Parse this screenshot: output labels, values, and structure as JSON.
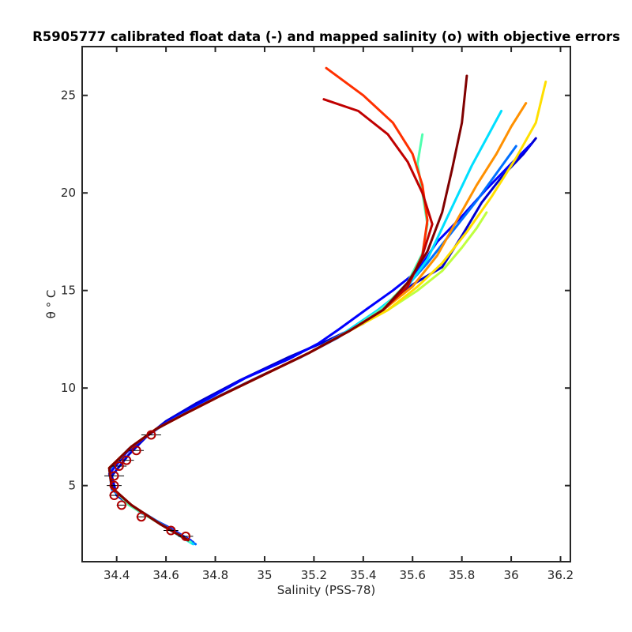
{
  "chart_data": {
    "type": "line",
    "title": "R5905777 calibrated float data (-) and mapped salinity (o) with objective errors",
    "xlabel": "Salinity (PSS-78)",
    "ylabel": "θ ° C",
    "xlim": [
      34.26,
      36.24
    ],
    "ylim": [
      1.1,
      27.5
    ],
    "xticks": [
      "34.4",
      "34.6",
      "34.8",
      "35",
      "35.2",
      "35.4",
      "35.6",
      "35.8",
      "36",
      "36.2"
    ],
    "yticks": [
      "5",
      "10",
      "15",
      "20",
      "25"
    ],
    "grid": false,
    "colormap": [
      "#00008f",
      "#0000ff",
      "#006fff",
      "#00dfff",
      "#4fffaf",
      "#bfff3f",
      "#ffdf00",
      "#ff9000",
      "#ff3000",
      "#c00000",
      "#800000"
    ],
    "series": [
      {
        "color": "#0000cd",
        "x": [
          34.71,
          34.62,
          34.5,
          34.4,
          34.38,
          34.45,
          34.52,
          34.6,
          34.72,
          34.9,
          35.1,
          35.25,
          35.4,
          35.5,
          35.6,
          35.72,
          35.8,
          35.88,
          35.96,
          36.05,
          36.1
        ],
        "y": [
          2.1,
          2.8,
          3.6,
          4.5,
          5.5,
          6.6,
          7.5,
          8.3,
          9.2,
          10.4,
          11.6,
          12.4,
          13.3,
          14.2,
          15.3,
          16.2,
          17.8,
          19.5,
          20.8,
          22.0,
          22.8
        ]
      },
      {
        "color": "#0000ff",
        "x": [
          34.7,
          34.6,
          34.48,
          34.39,
          34.37,
          34.44,
          34.53,
          34.62,
          34.75,
          34.92,
          35.1,
          35.22,
          35.3,
          35.42,
          35.52,
          35.62,
          35.7,
          35.8,
          35.9,
          36.0,
          36.08
        ],
        "y": [
          2.2,
          2.9,
          3.8,
          4.7,
          5.6,
          6.7,
          7.6,
          8.4,
          9.3,
          10.5,
          11.5,
          12.3,
          13.0,
          14.1,
          15.0,
          16.0,
          17.5,
          18.8,
          20.2,
          21.5,
          22.5
        ]
      },
      {
        "color": "#006fff",
        "x": [
          34.72,
          34.6,
          34.47,
          34.38,
          34.37,
          34.45,
          34.55,
          34.66,
          34.8,
          34.98,
          35.15,
          35.3,
          35.44,
          35.56,
          35.66,
          35.76,
          35.86,
          35.94,
          36.02
        ],
        "y": [
          2.0,
          2.9,
          3.9,
          4.8,
          5.8,
          6.9,
          7.8,
          8.6,
          9.5,
          10.6,
          11.6,
          12.6,
          13.8,
          15.0,
          16.4,
          18.0,
          19.6,
          21.0,
          22.4
        ]
      },
      {
        "color": "#00dfff",
        "x": [
          34.71,
          34.58,
          34.46,
          34.38,
          34.37,
          34.46,
          34.56,
          34.68,
          34.82,
          35.0,
          35.18,
          35.32,
          35.46,
          35.58,
          35.66,
          35.72,
          35.78,
          35.84,
          35.9,
          35.96
        ],
        "y": [
          2.0,
          3.0,
          4.0,
          4.9,
          5.9,
          7.0,
          7.9,
          8.7,
          9.6,
          10.7,
          11.8,
          12.8,
          14.0,
          15.2,
          16.6,
          18.2,
          19.8,
          21.4,
          22.8,
          24.2
        ]
      },
      {
        "color": "#4fffaf",
        "x": [
          34.7,
          34.58,
          34.45,
          34.38,
          34.37,
          34.46,
          34.56,
          34.68,
          34.82,
          35.0,
          35.18,
          35.34,
          35.48,
          35.58,
          35.64,
          35.66,
          35.64,
          35.62,
          35.64
        ],
        "y": [
          2.1,
          3.0,
          4.0,
          4.9,
          5.9,
          7.0,
          7.9,
          8.7,
          9.6,
          10.7,
          11.8,
          12.9,
          14.1,
          15.4,
          16.9,
          18.4,
          20.0,
          21.5,
          23.0
        ]
      },
      {
        "color": "#bfff3f",
        "x": [
          34.69,
          34.58,
          34.46,
          34.38,
          34.37,
          34.46,
          34.56,
          34.68,
          34.82,
          35.0,
          35.18,
          35.34,
          35.5,
          35.62,
          35.72,
          35.8,
          35.86,
          35.9
        ],
        "y": [
          2.2,
          3.0,
          4.0,
          4.9,
          5.9,
          7.0,
          7.9,
          8.7,
          9.6,
          10.7,
          11.8,
          12.9,
          14.0,
          15.0,
          16.0,
          17.2,
          18.2,
          19.0
        ]
      },
      {
        "color": "#ffdf00",
        "x": [
          34.69,
          34.58,
          34.46,
          34.38,
          34.37,
          34.46,
          34.56,
          34.68,
          34.82,
          35.0,
          35.18,
          35.34,
          35.5,
          35.62,
          35.72,
          35.82,
          35.92,
          36.02,
          36.1,
          36.14
        ],
        "y": [
          2.2,
          3.0,
          4.0,
          4.9,
          5.9,
          7.0,
          7.9,
          8.7,
          9.6,
          10.7,
          11.8,
          12.9,
          14.0,
          15.2,
          16.4,
          18.0,
          19.8,
          21.8,
          23.6,
          25.7
        ]
      },
      {
        "color": "#ff9000",
        "x": [
          34.69,
          34.58,
          34.46,
          34.38,
          34.37,
          34.46,
          34.56,
          34.68,
          34.82,
          35.0,
          35.18,
          35.34,
          35.48,
          35.6,
          35.7,
          35.78,
          35.86,
          35.94,
          36.0,
          36.06
        ],
        "y": [
          2.2,
          3.0,
          4.0,
          4.9,
          5.9,
          7.0,
          7.9,
          8.7,
          9.6,
          10.7,
          11.8,
          12.9,
          14.0,
          15.2,
          16.8,
          18.6,
          20.4,
          22.0,
          23.4,
          24.6
        ]
      },
      {
        "color": "#ff3000",
        "x": [
          34.69,
          34.58,
          34.46,
          34.38,
          34.37,
          34.46,
          34.56,
          34.68,
          34.82,
          35.0,
          35.18,
          35.34,
          35.48,
          35.58,
          35.64,
          35.66,
          35.64,
          35.6,
          35.52,
          35.4,
          35.25
        ],
        "y": [
          2.2,
          3.0,
          4.0,
          4.9,
          5.9,
          7.0,
          7.9,
          8.7,
          9.6,
          10.7,
          11.8,
          12.9,
          14.0,
          15.2,
          16.8,
          18.6,
          20.4,
          22.0,
          23.6,
          25.0,
          26.4
        ]
      },
      {
        "color": "#c00000",
        "x": [
          34.69,
          34.58,
          34.46,
          34.38,
          34.37,
          34.46,
          34.56,
          34.68,
          34.82,
          35.0,
          35.18,
          35.34,
          35.48,
          35.58,
          35.64,
          35.68,
          35.64,
          35.58,
          35.5,
          35.38,
          35.24
        ],
        "y": [
          2.2,
          3.0,
          4.0,
          4.9,
          5.9,
          7.0,
          7.9,
          8.7,
          9.6,
          10.7,
          11.8,
          12.9,
          14.0,
          15.2,
          16.8,
          18.4,
          20.0,
          21.6,
          23.0,
          24.2,
          24.8
        ]
      },
      {
        "color": "#800000",
        "x": [
          34.69,
          34.58,
          34.46,
          34.38,
          34.37,
          34.46,
          34.56,
          34.68,
          34.82,
          35.0,
          35.18,
          35.34,
          35.48,
          35.58,
          35.66,
          35.72,
          35.76,
          35.8,
          35.82
        ],
        "y": [
          2.2,
          3.0,
          4.0,
          4.9,
          5.9,
          7.0,
          7.9,
          8.7,
          9.6,
          10.7,
          11.8,
          12.9,
          14.0,
          15.4,
          17.0,
          19.0,
          21.2,
          23.6,
          26.0
        ]
      }
    ],
    "mapped_salinity": [
      {
        "x": 34.68,
        "y": 2.4,
        "err": 0.03
      },
      {
        "x": 34.62,
        "y": 2.7,
        "err": 0.03
      },
      {
        "x": 34.5,
        "y": 3.4,
        "err": 0.02
      },
      {
        "x": 34.42,
        "y": 4.0,
        "err": 0.02
      },
      {
        "x": 34.39,
        "y": 4.5,
        "err": 0.02
      },
      {
        "x": 34.39,
        "y": 5.0,
        "err": 0.03
      },
      {
        "x": 34.39,
        "y": 5.5,
        "err": 0.04
      },
      {
        "x": 34.41,
        "y": 6.0,
        "err": 0.03
      },
      {
        "x": 34.44,
        "y": 6.3,
        "err": 0.03
      },
      {
        "x": 34.48,
        "y": 6.8,
        "err": 0.03
      },
      {
        "x": 34.54,
        "y": 7.6,
        "err": 0.04
      }
    ]
  }
}
